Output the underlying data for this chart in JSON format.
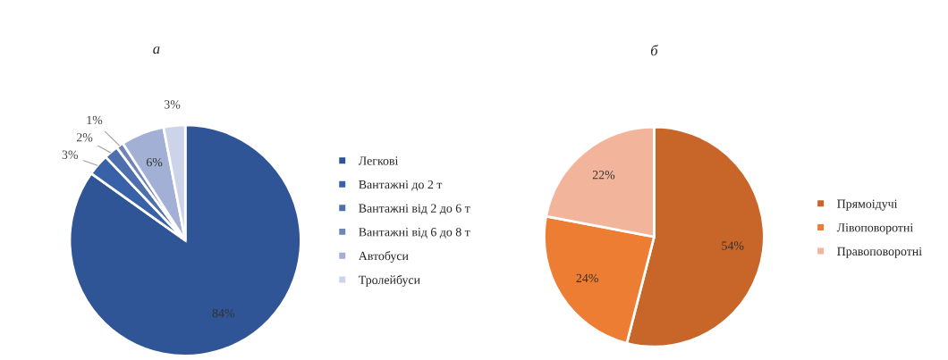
{
  "chart_data": [
    {
      "type": "pie",
      "title": "а",
      "categories": [
        "Легкові",
        "Вантажні до 2 т",
        "Вантажні від 2 до 6 т",
        "Вантажні від 6 до 8 т",
        "Автобуси",
        "Тролейбуси"
      ],
      "values": [
        84,
        3,
        2,
        1,
        6,
        3
      ],
      "value_labels": [
        "84%",
        "3%",
        "2%",
        "1%",
        "6%",
        "3%"
      ],
      "colors": [
        "#2f5597",
        "#3861a8",
        "#4d6fae",
        "#6f85b8",
        "#a3b0d6",
        "#cdd3e8"
      ],
      "legend": "right"
    },
    {
      "type": "pie",
      "title": "б",
      "categories": [
        "Прямоідучі",
        "Лівоповоротні",
        "Правоповоротні"
      ],
      "values": [
        54,
        24,
        22
      ],
      "value_labels": [
        "54%",
        "24%",
        "22%"
      ],
      "colors": [
        "#c8662a",
        "#ee7d34",
        "#f2b49a"
      ],
      "legend": "right"
    }
  ]
}
